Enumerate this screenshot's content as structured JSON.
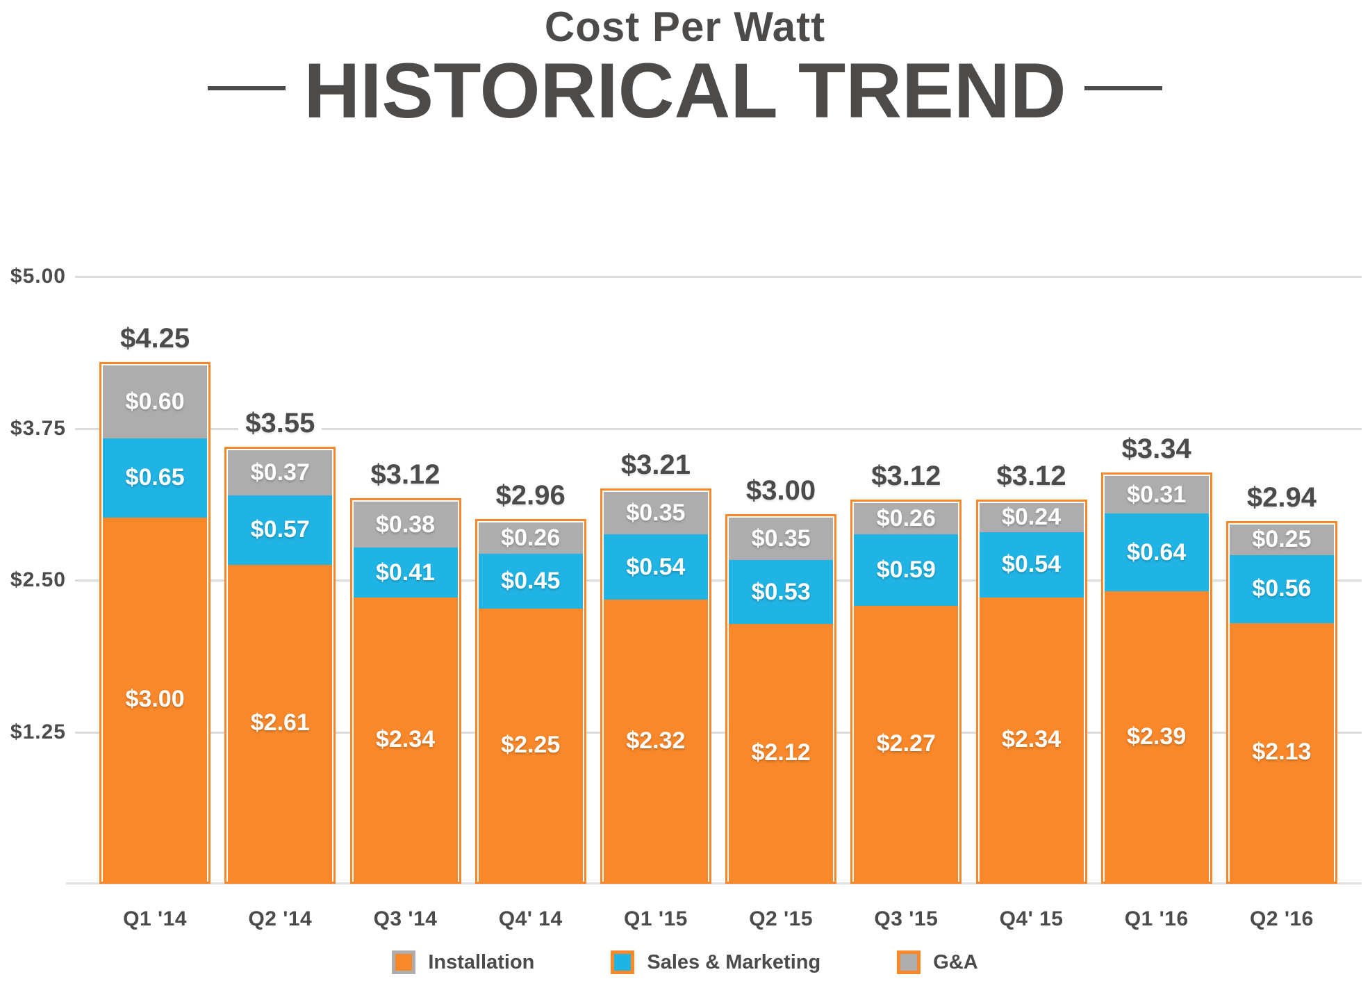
{
  "title": {
    "line1": "Cost Per Watt",
    "line2": "HISTORICAL TREND"
  },
  "colors": {
    "orange": "#f8882a",
    "blue": "#20b4e4",
    "gray": "#adadad",
    "dark_text": "#4d4b49",
    "gridline": "#dbdbdb",
    "bar_border": "#f8882a"
  },
  "chart_data": {
    "type": "bar",
    "stacked": true,
    "title": "Cost Per Watt — Historical Trend",
    "xlabel": "",
    "ylabel": "",
    "ylim": [
      0,
      5.0
    ],
    "grid": "horizontal",
    "legend_position": "bottom",
    "categories": [
      "Q1 '14",
      "Q2 '14",
      "Q3 '14",
      "Q4' 14",
      "Q1 '15",
      "Q2 '15",
      "Q3 '15",
      "Q4' 15",
      "Q1 '16",
      "Q2 '16"
    ],
    "series": [
      {
        "name": "Installation",
        "color": "#f8882a",
        "values": [
          3.0,
          2.61,
          2.34,
          2.25,
          2.32,
          2.12,
          2.27,
          2.34,
          2.39,
          2.13
        ]
      },
      {
        "name": "Sales & Marketing",
        "color": "#20b4e4",
        "values": [
          0.65,
          0.57,
          0.41,
          0.45,
          0.54,
          0.53,
          0.59,
          0.54,
          0.64,
          0.56
        ]
      },
      {
        "name": "G&A",
        "color": "#adadad",
        "values": [
          0.6,
          0.37,
          0.38,
          0.26,
          0.35,
          0.35,
          0.26,
          0.24,
          0.31,
          0.25
        ]
      }
    ],
    "total_labels": [
      "$4.25",
      "$3.55",
      "$3.12",
      "$2.96",
      "$3.21",
      "$3.00",
      "$3.12",
      "$3.12",
      "$3.34",
      "$2.94"
    ],
    "y_axis": {
      "ticks": [
        {
          "value": 5.0,
          "label": "$5.00"
        },
        {
          "value": 3.75,
          "label": "$3.75"
        },
        {
          "value": 2.5,
          "label": "$2.50"
        },
        {
          "value": 1.25,
          "label": "$1.25"
        }
      ]
    },
    "legend": [
      {
        "label": "Installation",
        "fill": "#f8882a",
        "border": "#adadad"
      },
      {
        "label": "Sales & Marketing",
        "fill": "#20b4e4",
        "border": "#f8882a"
      },
      {
        "label": "G&A",
        "fill": "#adadad",
        "border": "#f8882a"
      }
    ]
  }
}
